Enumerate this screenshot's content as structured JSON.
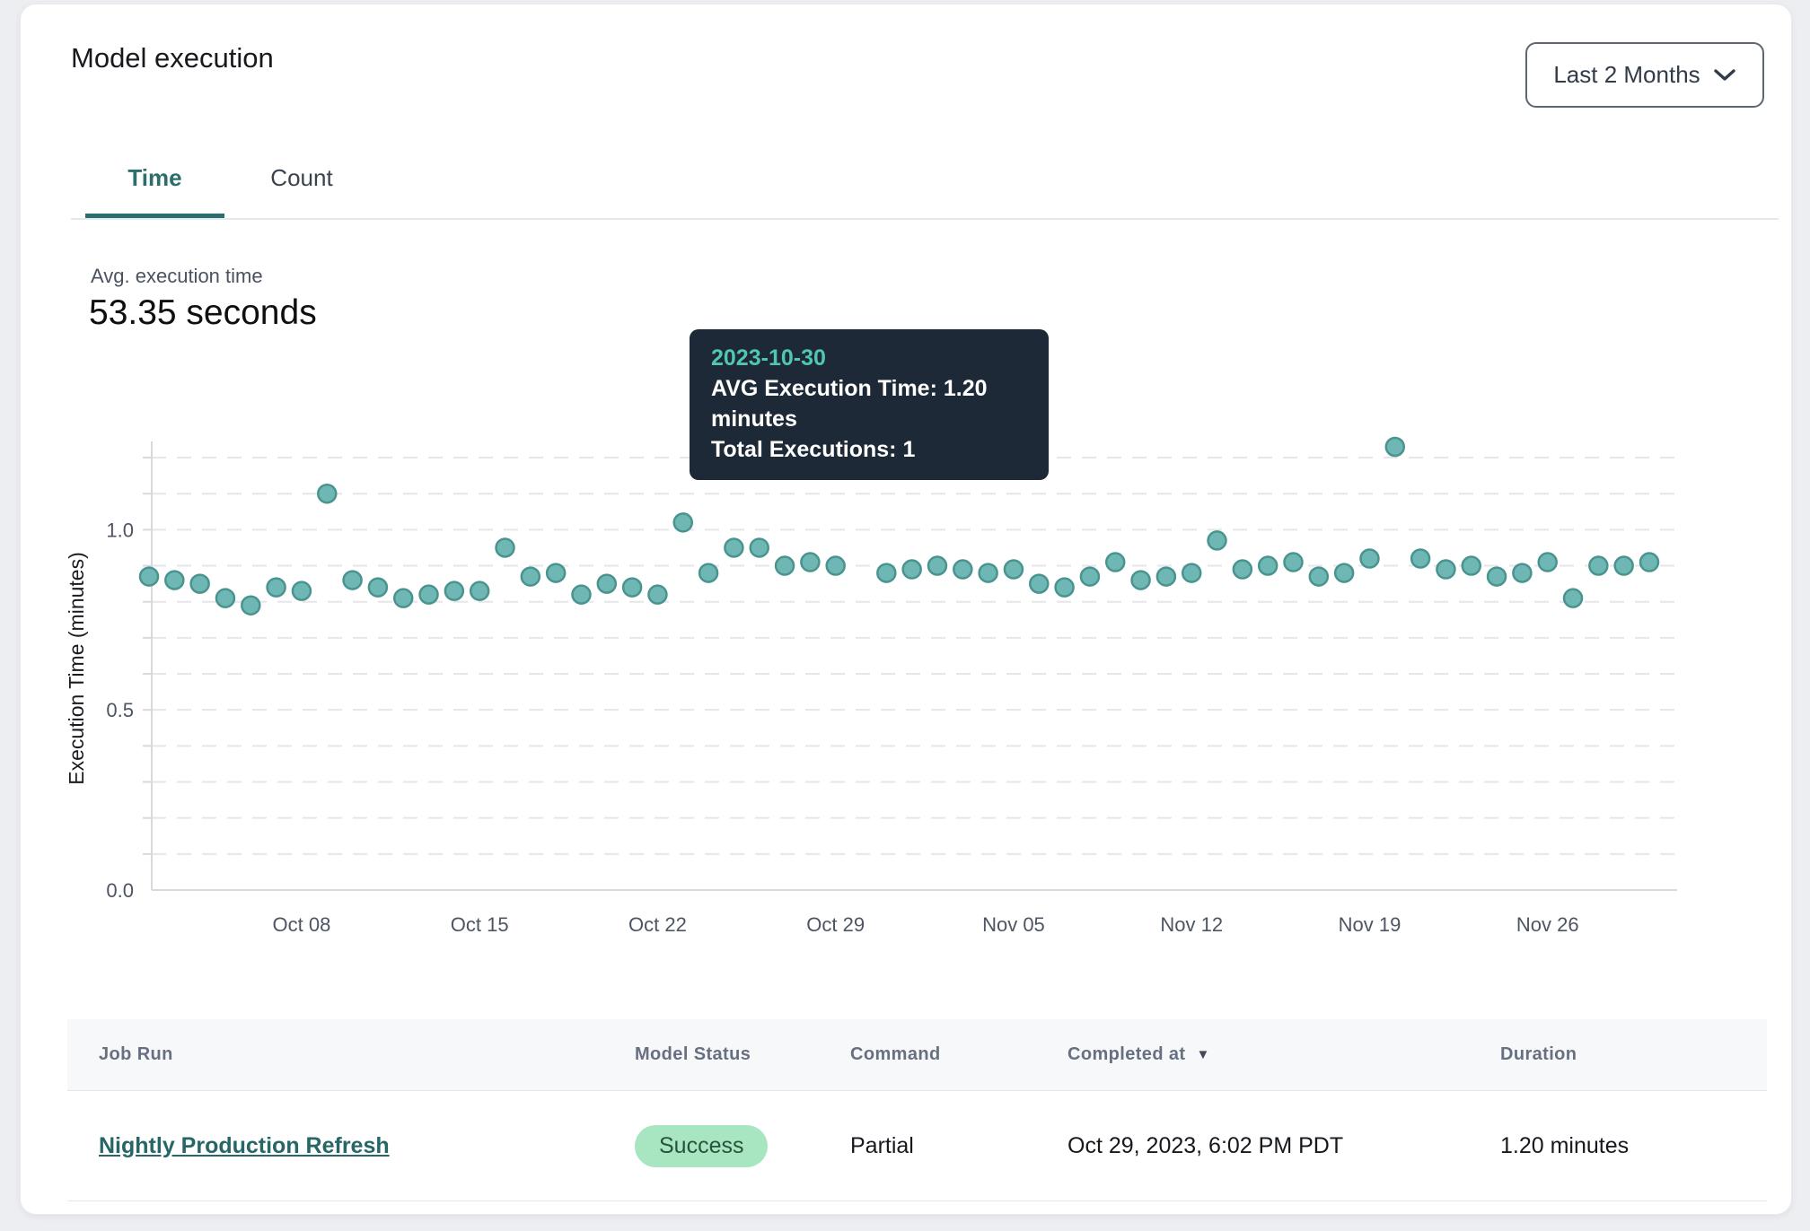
{
  "page": {
    "title": "Model execution"
  },
  "controls": {
    "date_range_label": "Last 2 Months"
  },
  "tabs": [
    {
      "label": "Time",
      "active": true
    },
    {
      "label": "Count",
      "active": false
    }
  ],
  "metric": {
    "label": "Avg. execution time",
    "value": "53.35 seconds"
  },
  "tooltip": {
    "date": "2023-10-30",
    "line1": "AVG Execution Time: 1.20 minutes",
    "line2": "Total Executions: 1"
  },
  "colors": {
    "accent_teal": "#2c6e6e",
    "dot_fill": "#6fb7b4",
    "dot_stroke": "#4a948f",
    "dot_highlight": "#4d8f8c",
    "gridline": "#e6e6e9",
    "axis": "#d7d9dc",
    "tooltip_bg": "#1e2937",
    "tooltip_date": "#4fc7b2",
    "badge_bg": "#a8e6c1",
    "badge_text": "#27523c"
  },
  "chart_data": {
    "type": "scatter",
    "title": "",
    "xlabel": "",
    "ylabel": "Execution Time (minutes)",
    "ylim": [
      0,
      1.23
    ],
    "yticks": [
      0,
      0.5,
      1.0
    ],
    "ytick_labels": [
      "0.0",
      "0.5",
      "1.0"
    ],
    "grid_interval": 0.1,
    "grid": "horizontal-dashed",
    "legend": "none",
    "xticks": [
      {
        "label": "Oct 08",
        "date": "2023-10-08"
      },
      {
        "label": "Oct 15",
        "date": "2023-10-15"
      },
      {
        "label": "Oct 22",
        "date": "2023-10-22"
      },
      {
        "label": "Oct 29",
        "date": "2023-10-29"
      },
      {
        "label": "Nov 05",
        "date": "2023-11-05"
      },
      {
        "label": "Nov 12",
        "date": "2023-11-12"
      },
      {
        "label": "Nov 19",
        "date": "2023-11-19"
      },
      {
        "label": "Nov 26",
        "date": "2023-11-26"
      }
    ],
    "highlighted_point": {
      "date": "2023-10-30",
      "value": 1.2,
      "total_executions": 1
    },
    "points": [
      [
        "2023-10-02",
        0.87
      ],
      [
        "2023-10-03",
        0.86
      ],
      [
        "2023-10-04",
        0.85
      ],
      [
        "2023-10-05",
        0.81
      ],
      [
        "2023-10-06",
        0.79
      ],
      [
        "2023-10-07",
        0.84
      ],
      [
        "2023-10-08",
        0.83
      ],
      [
        "2023-10-09",
        1.1
      ],
      [
        "2023-10-10",
        0.86
      ],
      [
        "2023-10-11",
        0.84
      ],
      [
        "2023-10-12",
        0.81
      ],
      [
        "2023-10-13",
        0.82
      ],
      [
        "2023-10-14",
        0.83
      ],
      [
        "2023-10-15",
        0.83
      ],
      [
        "2023-10-16",
        0.95
      ],
      [
        "2023-10-17",
        0.87
      ],
      [
        "2023-10-18",
        0.88
      ],
      [
        "2023-10-19",
        0.82
      ],
      [
        "2023-10-20",
        0.85
      ],
      [
        "2023-10-21",
        0.84
      ],
      [
        "2023-10-22",
        0.82
      ],
      [
        "2023-10-23",
        1.02
      ],
      [
        "2023-10-24",
        0.88
      ],
      [
        "2023-10-25",
        0.95
      ],
      [
        "2023-10-26",
        0.95
      ],
      [
        "2023-10-27",
        0.9
      ],
      [
        "2023-10-28",
        0.91
      ],
      [
        "2023-10-29",
        0.9
      ],
      [
        "2023-10-30",
        1.2
      ],
      [
        "2023-10-31",
        0.88
      ],
      [
        "2023-11-01",
        0.89
      ],
      [
        "2023-11-02",
        0.9
      ],
      [
        "2023-11-03",
        0.89
      ],
      [
        "2023-11-04",
        0.88
      ],
      [
        "2023-11-05",
        0.89
      ],
      [
        "2023-11-06",
        0.85
      ],
      [
        "2023-11-07",
        0.84
      ],
      [
        "2023-11-08",
        0.87
      ],
      [
        "2023-11-09",
        0.91
      ],
      [
        "2023-11-10",
        0.86
      ],
      [
        "2023-11-11",
        0.87
      ],
      [
        "2023-11-12",
        0.88
      ],
      [
        "2023-11-13",
        0.97
      ],
      [
        "2023-11-14",
        0.89
      ],
      [
        "2023-11-15",
        0.9
      ],
      [
        "2023-11-16",
        0.91
      ],
      [
        "2023-11-17",
        0.87
      ],
      [
        "2023-11-18",
        0.88
      ],
      [
        "2023-11-19",
        0.92
      ],
      [
        "2023-11-20",
        1.23
      ],
      [
        "2023-11-21",
        0.92
      ],
      [
        "2023-11-22",
        0.89
      ],
      [
        "2023-11-23",
        0.9
      ],
      [
        "2023-11-24",
        0.87
      ],
      [
        "2023-11-25",
        0.88
      ],
      [
        "2023-11-26",
        0.91
      ],
      [
        "2023-11-27",
        0.81
      ],
      [
        "2023-11-28",
        0.9
      ],
      [
        "2023-11-29",
        0.9
      ],
      [
        "2023-11-30",
        0.91
      ]
    ]
  },
  "table": {
    "columns": [
      "Job Run",
      "Model Status",
      "Command",
      "Completed at",
      "Duration"
    ],
    "sorted_column": "Completed at",
    "sort_direction": "desc",
    "rows": [
      {
        "job_run": "Nightly Production Refresh",
        "model_status": "Success",
        "command": "Partial",
        "completed_at": "Oct 29, 2023, 6:02 PM PDT",
        "duration": "1.20 minutes"
      }
    ]
  }
}
